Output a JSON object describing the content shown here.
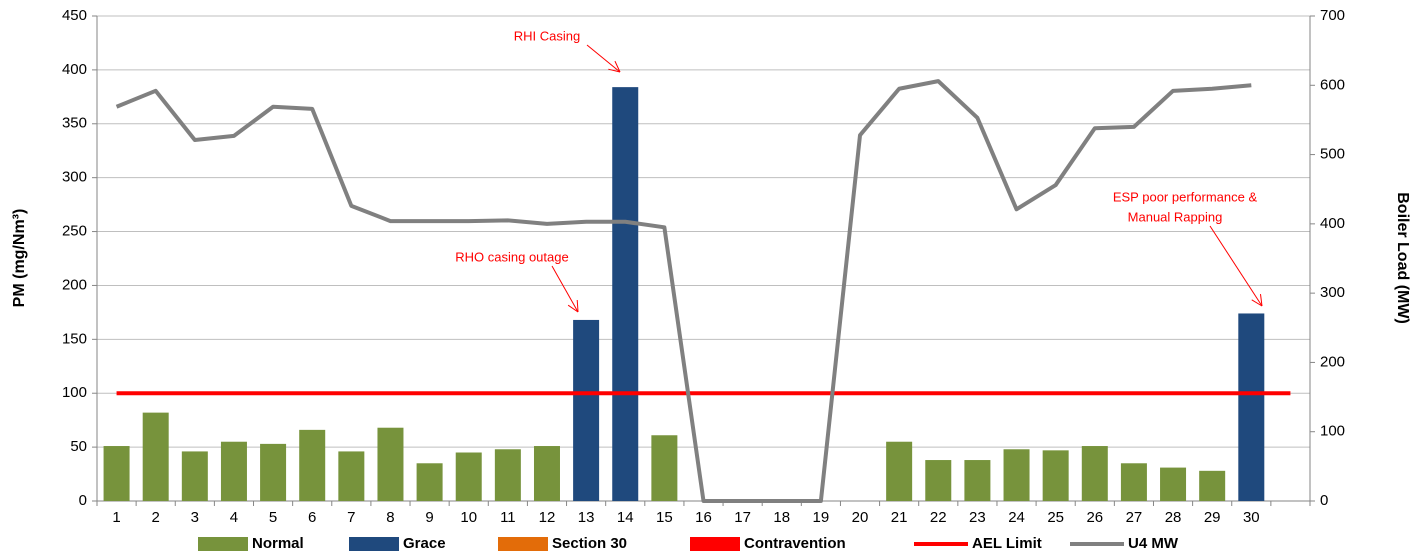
{
  "chart_data": {
    "type": "bar",
    "categories": [
      "1",
      "2",
      "3",
      "4",
      "5",
      "6",
      "7",
      "8",
      "9",
      "10",
      "11",
      "12",
      "13",
      "14",
      "15",
      "16",
      "17",
      "18",
      "19",
      "20",
      "21",
      "22",
      "23",
      "24",
      "25",
      "26",
      "27",
      "28",
      "29",
      "30",
      null
    ],
    "series": [
      {
        "name": "Normal",
        "color": "#77933c",
        "values": [
          51,
          82,
          46,
          55,
          53,
          66,
          46,
          68,
          35,
          45,
          48,
          51,
          null,
          null,
          61,
          null,
          null,
          null,
          null,
          null,
          55,
          38,
          38,
          48,
          47,
          51,
          35,
          31,
          28,
          null,
          null
        ]
      },
      {
        "name": "Grace",
        "color": "#1f497d",
        "values": [
          null,
          null,
          null,
          null,
          null,
          null,
          null,
          null,
          null,
          null,
          null,
          null,
          168,
          384,
          null,
          null,
          null,
          null,
          null,
          null,
          null,
          null,
          null,
          null,
          null,
          null,
          null,
          null,
          null,
          174,
          null
        ]
      },
      {
        "name": "Section 30",
        "color": "#e36c09",
        "values": [
          null,
          null,
          null,
          null,
          null,
          null,
          null,
          null,
          null,
          null,
          null,
          null,
          null,
          null,
          null,
          null,
          null,
          null,
          null,
          null,
          null,
          null,
          null,
          null,
          null,
          null,
          null,
          null,
          null,
          null,
          null
        ]
      },
      {
        "name": "Contravention",
        "color": "#ff0000",
        "values": [
          null,
          null,
          null,
          null,
          null,
          null,
          null,
          null,
          null,
          null,
          null,
          null,
          null,
          null,
          null,
          null,
          null,
          null,
          null,
          null,
          null,
          null,
          null,
          null,
          null,
          null,
          null,
          null,
          null,
          null,
          null
        ]
      },
      {
        "name": "AEL Limit",
        "type": "line",
        "color": "#ff0000",
        "values": [
          100,
          100,
          100,
          100,
          100,
          100,
          100,
          100,
          100,
          100,
          100,
          100,
          100,
          100,
          100,
          100,
          100,
          100,
          100,
          100,
          100,
          100,
          100,
          100,
          100,
          100,
          100,
          100,
          100,
          100,
          100
        ]
      },
      {
        "name": "U4 MW",
        "type": "line",
        "axis": "y2",
        "color": "#808080",
        "values": [
          569,
          592,
          521,
          527,
          569,
          566,
          426,
          404,
          404,
          404,
          405,
          400,
          403,
          403,
          395,
          0,
          0,
          0,
          0,
          528,
          595,
          606,
          553,
          421,
          456,
          538,
          540,
          592,
          595,
          600,
          null
        ]
      }
    ],
    "y_label": "PM (mg/Nm³)",
    "y2_label": "Boiler Load (MW)",
    "ylim": [
      0,
      450
    ],
    "yticks": [
      0,
      50,
      100,
      150,
      200,
      250,
      300,
      350,
      400,
      450
    ],
    "y2lim": [
      0,
      700
    ],
    "y2ticks": [
      0,
      100,
      200,
      300,
      400,
      500,
      600,
      700
    ],
    "grid": true,
    "legend": "bottom",
    "annotations": [
      {
        "text": [
          "RHI Casing"
        ],
        "category": 13
      },
      {
        "text": [
          "RHO casing outage"
        ],
        "category": 12
      },
      {
        "text": [
          "ESP poor performance &",
          "Manual Rapping"
        ],
        "category": 29
      }
    ]
  }
}
